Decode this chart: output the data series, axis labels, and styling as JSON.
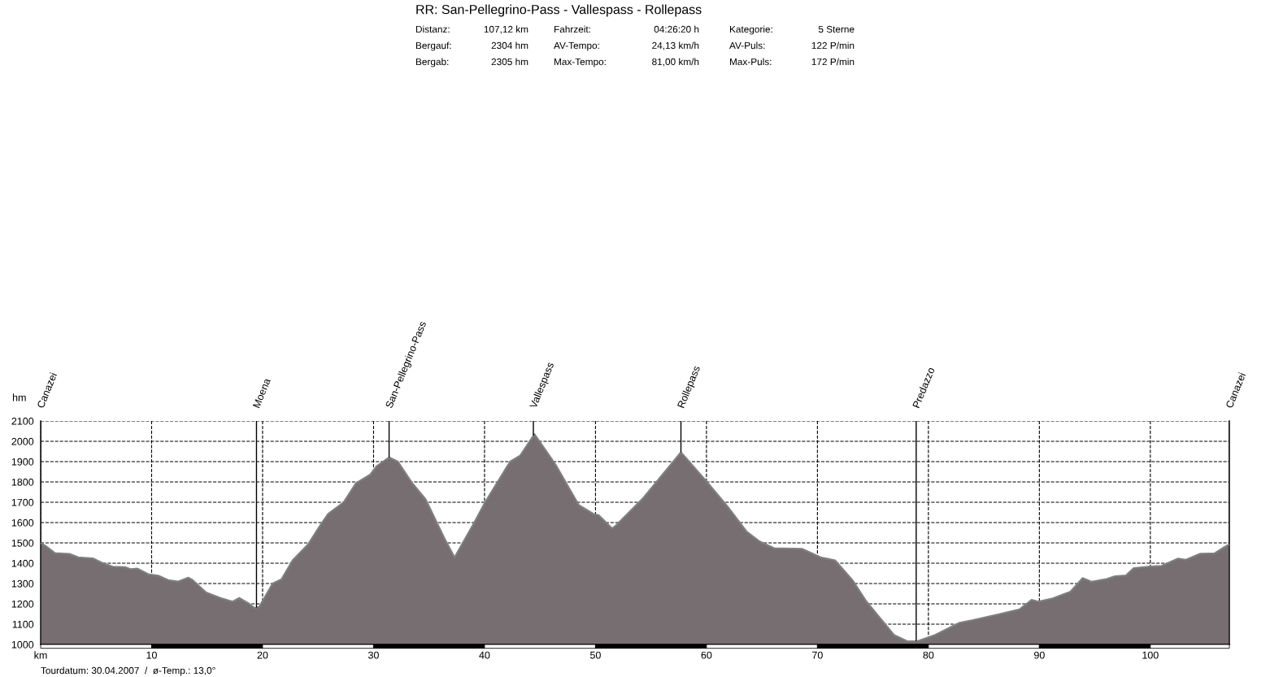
{
  "chart_data": {
    "type": "area",
    "title": "RR: San-Pellegrino-Pass - Vallespass - Rollepass",
    "ylabel": "hm",
    "x": [
      0,
      0.6,
      1.3,
      2.6,
      3.4,
      4.7,
      5.5,
      6.5,
      7.6,
      8.1,
      8.7,
      9.7,
      10.6,
      11.5,
      12.4,
      13.3,
      13.7,
      14.9,
      16.2,
      17.3,
      17.9,
      18.8,
      19.3,
      19.7,
      20.9,
      21.7,
      22.7,
      24.1,
      25.1,
      25.9,
      27.3,
      28.4,
      29.7,
      30.3,
      31.4,
      32.2,
      33.5,
      34.7,
      36.4,
      37.3,
      39.0,
      40.05,
      42.3,
      43.2,
      44.5,
      46.4,
      48.5,
      49.8,
      50.3,
      51.5,
      51.9,
      54.3,
      57.7,
      60.05,
      61.9,
      63.6,
      64.8,
      66.1,
      68.6,
      70.3,
      71.6,
      73.2,
      74.4,
      76.9,
      78.1,
      79.0,
      80.6,
      82.8,
      84.0,
      86.2,
      88.2,
      89.3,
      89.9,
      91.2,
      92.8,
      93.9,
      94.7,
      96.1,
      96.8,
      97.8,
      98.5,
      100.0,
      101.0,
      102.5,
      103.2,
      104.5,
      105.8,
      106.7,
      107.12
    ],
    "series": [
      {
        "color": "#766e70",
        "values": [
          1500,
          1479,
          1450,
          1446,
          1429,
          1424,
          1403,
          1383,
          1381,
          1371,
          1374,
          1346,
          1339,
          1317,
          1310,
          1329,
          1317,
          1257,
          1229,
          1211,
          1229,
          1200,
          1179,
          1186,
          1300,
          1321,
          1414,
          1493,
          1579,
          1643,
          1700,
          1793,
          1836,
          1879,
          1921,
          1900,
          1793,
          1714,
          1521,
          1429,
          1593,
          1700,
          1900,
          1929,
          2036,
          1886,
          1686,
          1643,
          1636,
          1571,
          1589,
          1721,
          1946,
          1800,
          1679,
          1557,
          1507,
          1474,
          1471,
          1429,
          1414,
          1314,
          1213,
          1047,
          1016,
          1016,
          1047,
          1107,
          1120,
          1147,
          1173,
          1220,
          1211,
          1227,
          1260,
          1327,
          1309,
          1323,
          1336,
          1340,
          1376,
          1384,
          1387,
          1423,
          1417,
          1447,
          1449,
          1480,
          1493
        ]
      }
    ],
    "xlim": [
      0,
      107.12
    ],
    "ylim": [
      1000,
      2100
    ],
    "xticks": [
      {
        "value": 0,
        "label": "km"
      },
      10,
      20,
      30,
      40,
      50,
      60,
      70,
      80,
      90,
      100
    ],
    "yticks": [
      1000,
      1100,
      1200,
      1300,
      1400,
      1500,
      1600,
      1700,
      1800,
      1900,
      2000,
      2100
    ],
    "grid": true,
    "line_style": "dashed",
    "ref_lines": [
      {
        "axis": "x",
        "value": 0,
        "label": "Canazei"
      },
      {
        "axis": "x",
        "value": 19.45,
        "label": "Moena"
      },
      {
        "axis": "x",
        "value": 31.4,
        "label": "San-Pellegrino-Pass"
      },
      {
        "axis": "x",
        "value": 44.4,
        "label": "Vallespass"
      },
      {
        "axis": "x",
        "value": 57.7,
        "label": "Rollepass"
      },
      {
        "axis": "x",
        "value": 78.9,
        "label": "Predazzo"
      },
      {
        "axis": "x",
        "value": 107.12,
        "label": "Canazei"
      }
    ],
    "annotations": [
      "Distanz:",
      "107,12 km",
      "Fahrzeit:",
      "04:26:20 h",
      "Kategorie:",
      "5 Sterne",
      "Bergauf:",
      "2304 hm",
      "AV-Tempo:",
      "24,13 km/h",
      "AV-Puls:",
      "122 P/min",
      "Bergab:",
      "2305 hm",
      "Max-Tempo:",
      "81,00 km/h",
      "Max-Puls:",
      "172 P/min",
      "Tourdatum: 30.04.2007  /  ø-Temp.: 13,0°"
    ]
  }
}
